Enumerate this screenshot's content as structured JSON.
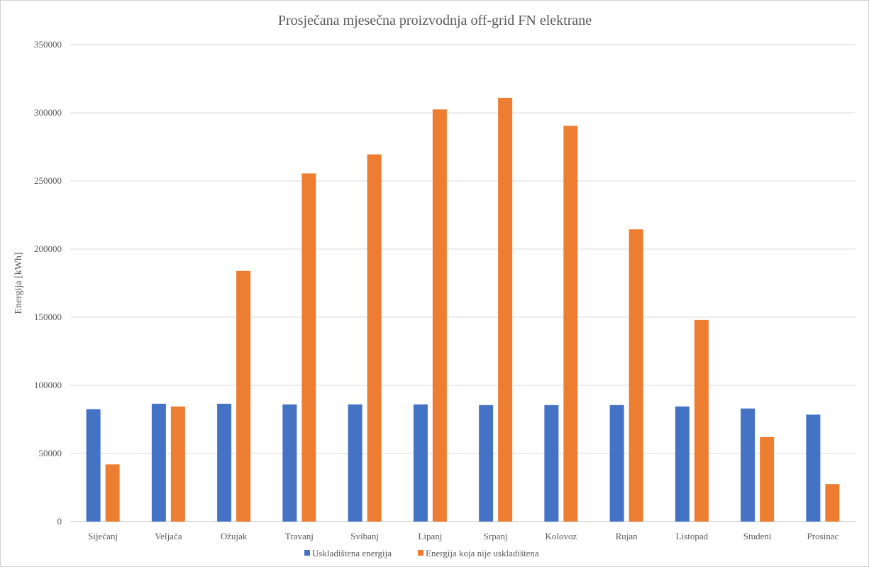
{
  "chart_data": {
    "type": "bar",
    "title": "Prosječana mjesečna proizvodnja off-grid FN elektrane",
    "xlabel": "",
    "ylabel": "Energija [kWh]",
    "ylim": [
      0,
      350000
    ],
    "yticks": [
      0,
      50000,
      100000,
      150000,
      200000,
      250000,
      300000,
      350000
    ],
    "grid": true,
    "legend_position": "bottom",
    "categories": [
      "Siječanj",
      "Veljača",
      "Ožujak",
      "Travanj",
      "Svibanj",
      "Lipanj",
      "Srpanj",
      "Kolovoz",
      "Rujan",
      "Listopad",
      "Studeni",
      "Prosinac"
    ],
    "series": [
      {
        "name": "Uskladištena energija",
        "color": "#4472C4",
        "values": [
          82500,
          86500,
          86500,
          86000,
          86000,
          86000,
          85500,
          85500,
          85500,
          84500,
          83000,
          78500
        ]
      },
      {
        "name": "Energija koja nije uskladištena",
        "color": "#ED7D31",
        "values": [
          42000,
          84500,
          184000,
          255500,
          269500,
          302500,
          311000,
          290500,
          214500,
          148000,
          62000,
          27500
        ]
      }
    ]
  }
}
